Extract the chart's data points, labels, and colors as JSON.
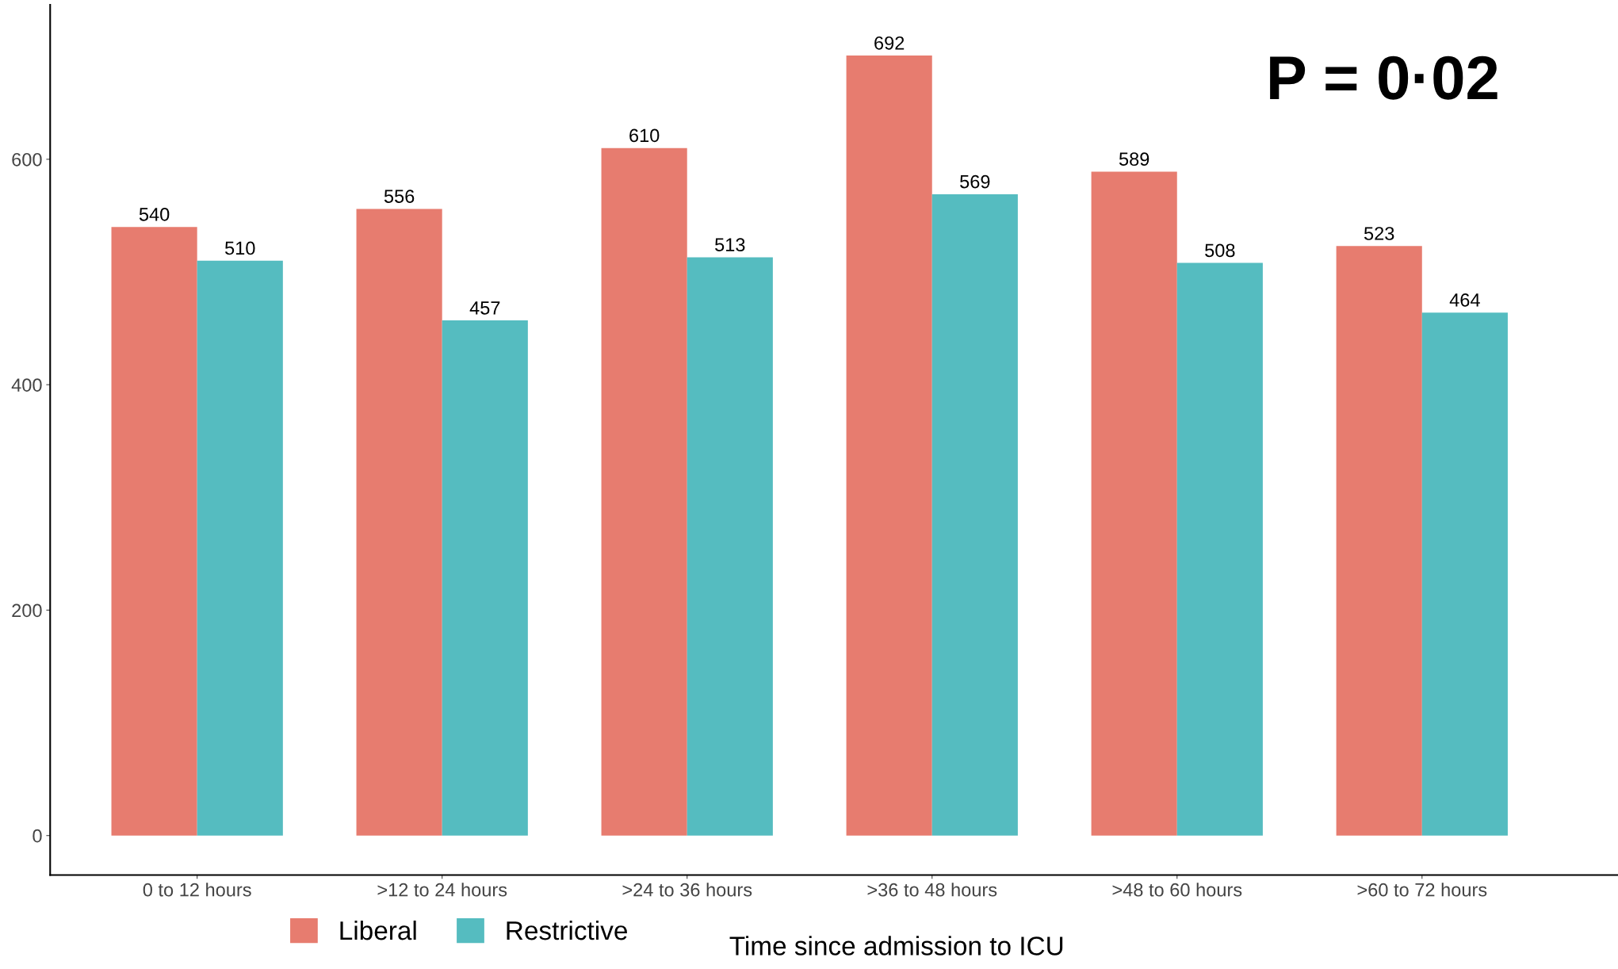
{
  "chart_data": {
    "type": "bar",
    "xlabel": "Time since admission to ICU",
    "categories": [
      "0 to 12 hours",
      ">12 to 24 hours",
      ">24 to 36 hours",
      ">36 to 48 hours",
      ">48 to 60 hours",
      ">60 to 72 hours"
    ],
    "series": [
      {
        "name": "Liberal",
        "color": "#e77c6f",
        "values": [
          540,
          556,
          610,
          692,
          589,
          523
        ]
      },
      {
        "name": "Restrictive",
        "color": "#55bcc0",
        "values": [
          510,
          457,
          513,
          569,
          508,
          464
        ]
      }
    ],
    "ylim": [
      -35,
      737
    ],
    "yticks": [
      0,
      200,
      400,
      600
    ],
    "data_labels": true,
    "grid": false,
    "legend": "bottom",
    "annotations": [
      "P = 0·02"
    ]
  }
}
